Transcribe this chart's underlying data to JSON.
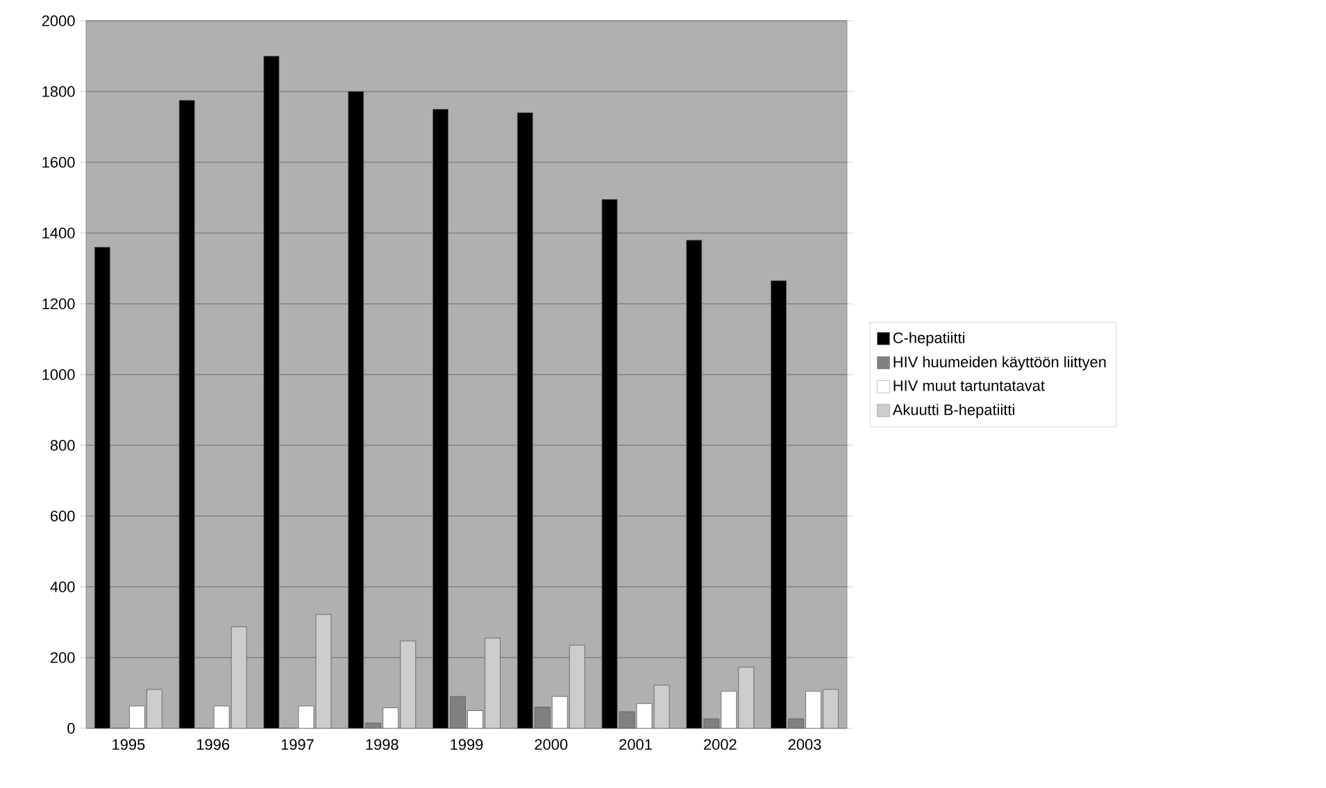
{
  "chart_data": {
    "type": "bar",
    "categories": [
      "1995",
      "1996",
      "1997",
      "1998",
      "1999",
      "2000",
      "2001",
      "2002",
      "2003"
    ],
    "series": [
      {
        "name": "C-hepatiitti",
        "color": "#000000",
        "values": [
          1360,
          1775,
          1900,
          1800,
          1750,
          1740,
          1495,
          1380,
          1265
        ]
      },
      {
        "name": "HIV huumeiden käyttöön liittyen",
        "color": "#808080",
        "values": [
          0,
          0,
          0,
          15,
          90,
          60,
          47,
          27,
          27
        ]
      },
      {
        "name": "HIV muut tartuntatavat",
        "color": "#ffffff",
        "values": [
          63,
          63,
          63,
          58,
          50,
          90,
          70,
          105,
          105
        ]
      },
      {
        "name": "Akuutti B-hepatiitti",
        "color": "#cccccc",
        "values": [
          110,
          287,
          322,
          247,
          255,
          235,
          122,
          173,
          110
        ]
      }
    ],
    "ylim": [
      0,
      2000
    ],
    "yticks": [
      0,
      200,
      400,
      600,
      800,
      1000,
      1200,
      1400,
      1600,
      1800,
      2000
    ],
    "grid": "y",
    "legend": "right"
  }
}
